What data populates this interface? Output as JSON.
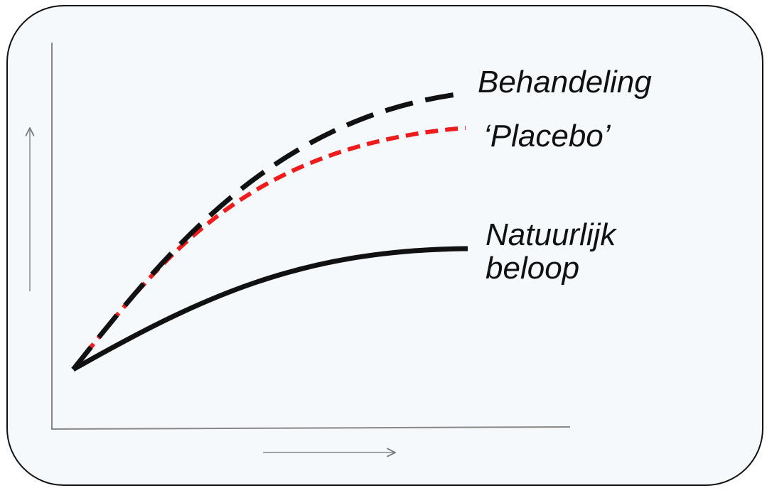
{
  "curves": [
    {
      "label": "Behandeling"
    },
    {
      "label": "‘Placebo’"
    },
    {
      "label_lines": [
        "Natuurlijk",
        "beloop"
      ]
    }
  ]
}
